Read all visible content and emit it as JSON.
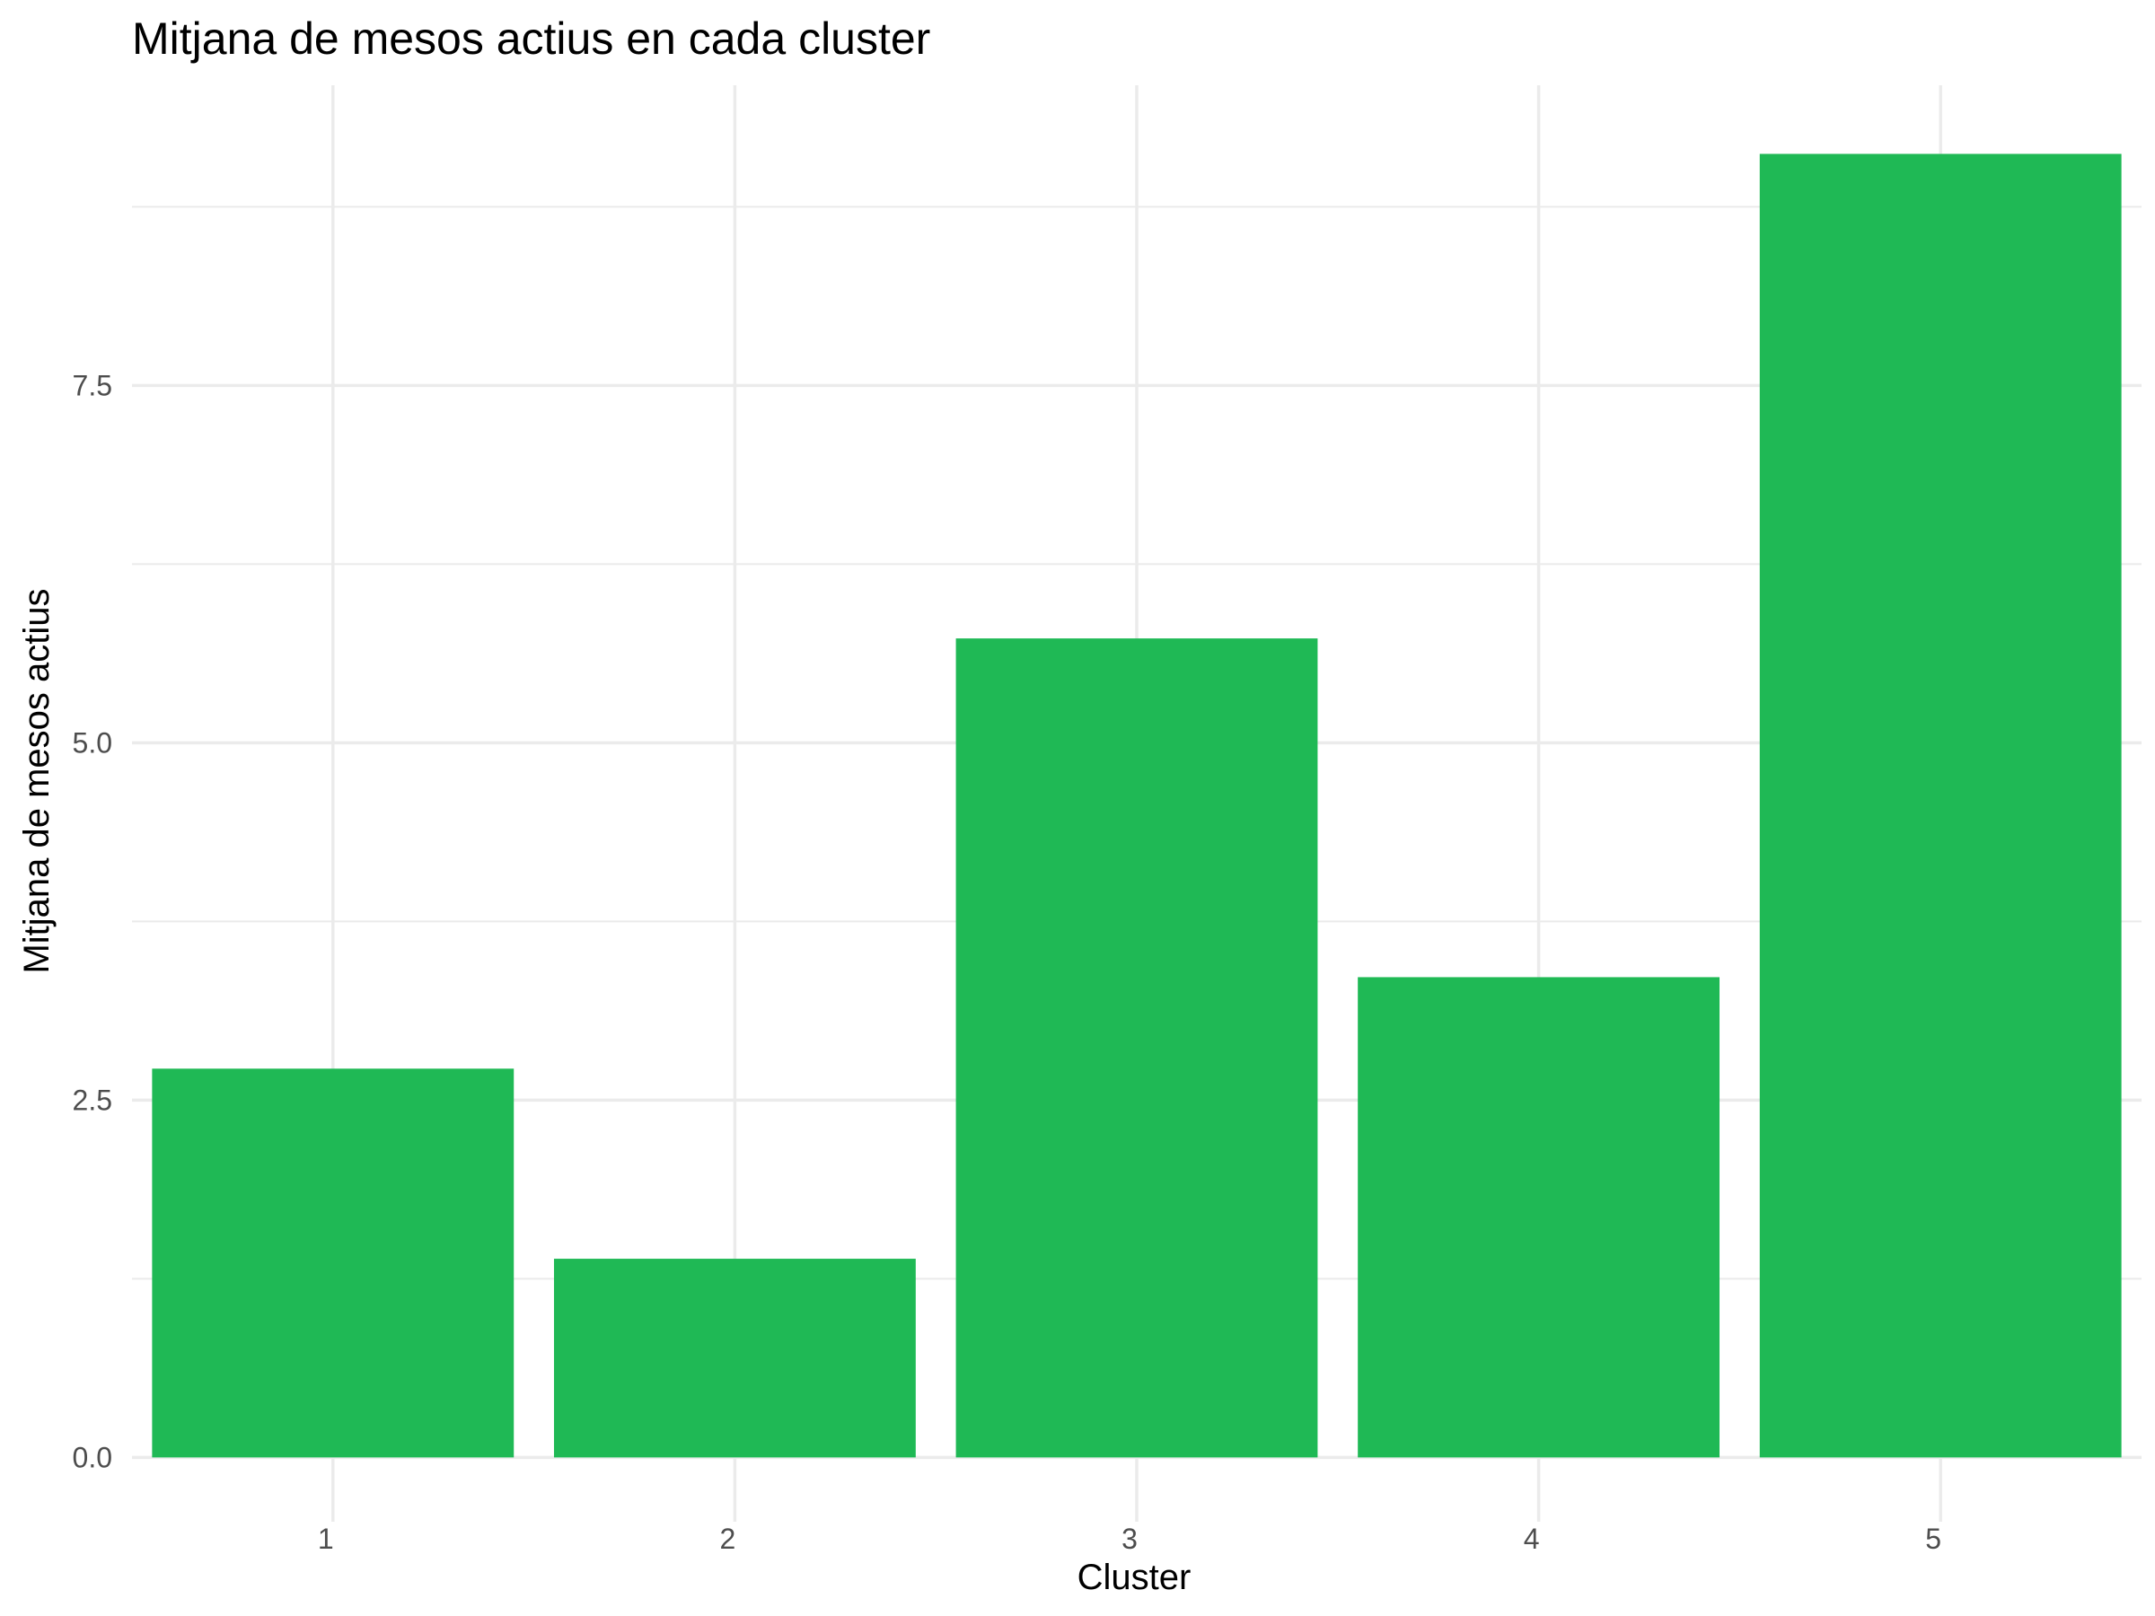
{
  "chart_data": {
    "type": "bar",
    "title": "Mitjana de mesos actius en cada cluster",
    "xlabel": "Cluster",
    "ylabel": "Mitjana de mesos actius",
    "categories": [
      "1",
      "2",
      "3",
      "4",
      "5"
    ],
    "values": [
      2.72,
      1.39,
      5.73,
      3.36,
      9.12
    ],
    "ylim": [
      -0.45,
      9.6
    ],
    "y_ticks": [
      0.0,
      2.5,
      5.0,
      7.5
    ],
    "y_tick_labels": [
      "0.0",
      "2.5",
      "5.0",
      "7.5"
    ],
    "y_minor_ticks": [
      1.25,
      3.75,
      6.25,
      8.75
    ],
    "grid": true,
    "legend": "none",
    "bar_color": "#1fb955",
    "grid_color": "#ebebeb"
  }
}
